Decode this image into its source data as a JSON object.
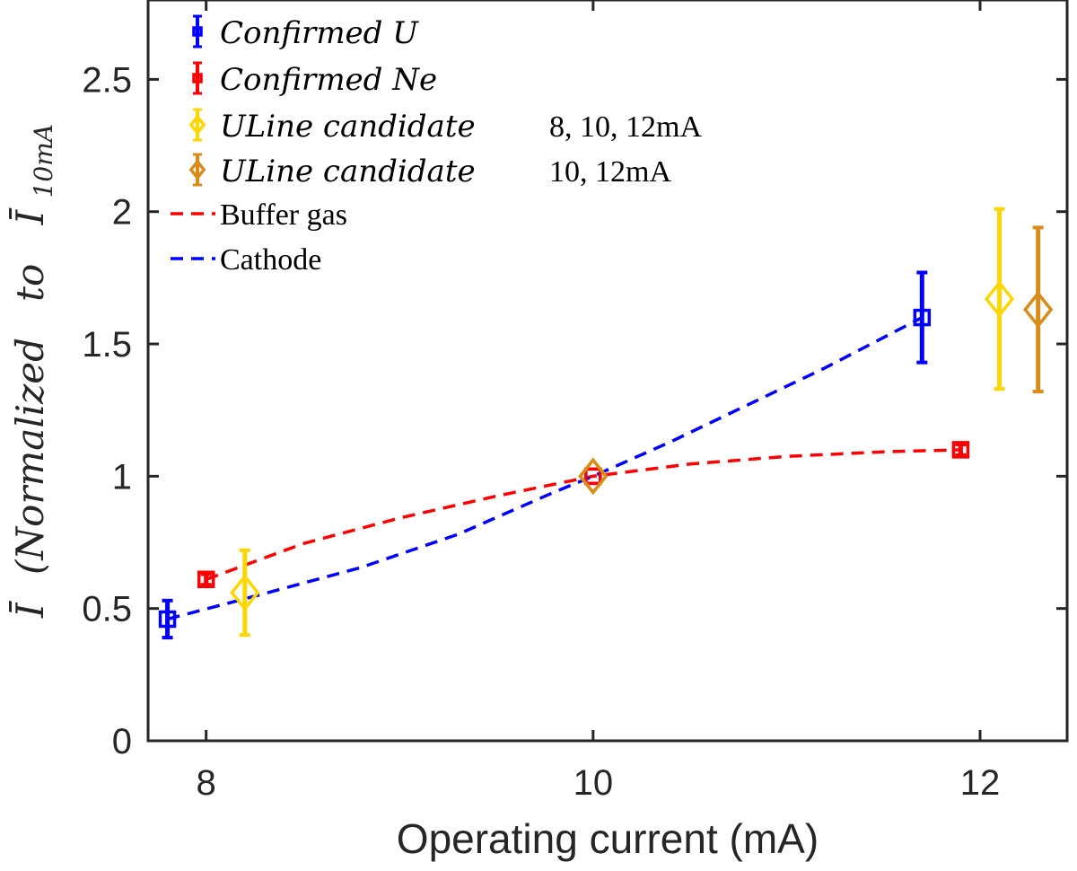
{
  "chart_data": {
    "type": "scatter",
    "xlabel": "Operating current (mA)",
    "ylabel_parts": {
      "symbol": "Ī",
      "text": "(Normalized   to",
      "sub_symbol": "Ī",
      "subscript": "10mA"
    },
    "xlim": [
      7.7,
      12.45
    ],
    "ylim": [
      0,
      2.8
    ],
    "x_ticks": [
      8,
      10,
      12
    ],
    "y_ticks": [
      0,
      0.5,
      1,
      1.5,
      2,
      2.5
    ],
    "y_tick_labels": [
      "0",
      "0.5",
      "1",
      "1.5",
      "2",
      "2.5"
    ],
    "series": [
      {
        "name": "Confirmed U",
        "legend": "Confirmed   U",
        "color": "#0000ff",
        "marker": "square",
        "points": [
          {
            "x": 7.8,
            "y": 0.46,
            "err": 0.07
          },
          {
            "x": 10.0,
            "y": 1.0,
            "err": 0.0
          },
          {
            "x": 11.7,
            "y": 1.6,
            "err": 0.17
          }
        ]
      },
      {
        "name": "Confirmed Ne",
        "legend": "Confirmed   Ne",
        "color": "#ff0000",
        "marker": "square",
        "points": [
          {
            "x": 8.0,
            "y": 0.61,
            "err": 0.02
          },
          {
            "x": 10.0,
            "y": 1.0,
            "err": 0.0
          },
          {
            "x": 11.9,
            "y": 1.1,
            "err": 0.02
          }
        ]
      },
      {
        "name": "ULine candidate 8,10,12mA",
        "legend": "ULine   candidate",
        "legend_suffix": "8, 10, 12mA",
        "color": "#ffd700",
        "marker": "diamond",
        "points": [
          {
            "x": 8.2,
            "y": 0.56,
            "err": 0.16
          },
          {
            "x": 10.0,
            "y": 1.0,
            "err": 0.0
          },
          {
            "x": 12.1,
            "y": 1.67,
            "err": 0.34
          }
        ]
      },
      {
        "name": "ULine candidate 10,12mA",
        "legend": "ULine   candidate",
        "legend_suffix": "10, 12mA",
        "color": "#d98c1a",
        "marker": "diamond",
        "points": [
          {
            "x": 10.0,
            "y": 1.0,
            "err": 0.0
          },
          {
            "x": 12.3,
            "y": 1.63,
            "err": 0.31
          }
        ]
      }
    ],
    "fit_lines": [
      {
        "name": "Buffer gas",
        "color": "#ff0000",
        "style": "dashed",
        "x": [
          8.0,
          8.5,
          9.0,
          9.5,
          10.0,
          10.5,
          11.0,
          11.5,
          11.9
        ],
        "y": [
          0.61,
          0.745,
          0.842,
          0.925,
          1.0,
          1.046,
          1.075,
          1.092,
          1.1
        ]
      },
      {
        "name": "Cathode",
        "color": "#0000ff",
        "style": "dashed",
        "x": [
          7.8,
          8.3,
          8.8,
          9.3,
          9.8,
          10.0,
          10.4,
          10.8,
          11.2,
          11.7
        ],
        "y": [
          0.46,
          0.556,
          0.655,
          0.78,
          0.94,
          1.0,
          1.13,
          1.27,
          1.41,
          1.6
        ]
      }
    ],
    "legend_position": "top-left"
  }
}
